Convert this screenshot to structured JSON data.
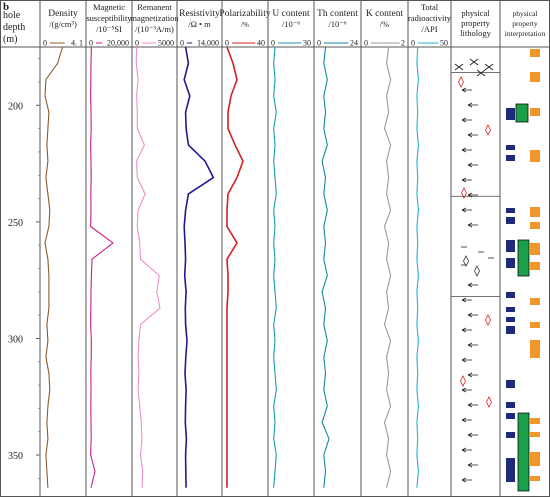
{
  "panel_label": "b",
  "depth": {
    "header": [
      "hole",
      "depth",
      "(m)"
    ],
    "ticks": [
      200,
      250,
      300,
      350
    ],
    "range": [
      175,
      368
    ]
  },
  "tracks": [
    {
      "key": "density",
      "header": [
        "Density",
        "/(g/cm³)"
      ],
      "scale_min": "0",
      "scale_max": "4. 1",
      "min": 0,
      "max": 4.1,
      "color": "#8b5a2b"
    },
    {
      "key": "magsus",
      "header": [
        "Magnetic",
        "susceptibility",
        "/10⁻⁵SI"
      ],
      "scale_min": "0",
      "scale_max": "20,000",
      "min": 0,
      "max": 20000,
      "color": "#cc1f8a"
    },
    {
      "key": "remanent",
      "header": [
        "Remanent",
        "magnetization",
        "/(10⁻³A/m)"
      ],
      "scale_min": "0",
      "scale_max": "5000",
      "min": 0,
      "max": 5000,
      "color": "#f08cc8"
    },
    {
      "key": "resistivity",
      "header": [
        "Resistivity",
        "/Ω • m"
      ],
      "scale_min": "0",
      "scale_max": "14,000",
      "min": 0,
      "max": 14000,
      "color": "#1c1c8c"
    },
    {
      "key": "polarizability",
      "header": [
        "Polarizability",
        "/%"
      ],
      "scale_min": "0",
      "scale_max": "40",
      "min": 0,
      "max": 40,
      "color": "#d42020"
    },
    {
      "key": "u",
      "header": [
        "U content",
        "/10⁻⁶"
      ],
      "scale_min": "0",
      "scale_max": "30",
      "min": 0,
      "max": 30,
      "color": "#1a9bb0"
    },
    {
      "key": "th",
      "header": [
        "Th content",
        "/10⁻⁶"
      ],
      "scale_min": "0",
      "scale_max": "24",
      "min": 0,
      "max": 24,
      "color": "#1686a3"
    },
    {
      "key": "k",
      "header": [
        "K content",
        "/%"
      ],
      "scale_min": "0",
      "scale_max": "2",
      "min": 0,
      "max": 2,
      "color": "#9a9a9a"
    },
    {
      "key": "total",
      "header": [
        "Total",
        "radioactivity",
        "/API"
      ],
      "scale_min": "0",
      "scale_max": "50",
      "min": 0,
      "max": 50,
      "color": "#2ab0d8"
    }
  ],
  "lithology": {
    "header": [
      "physical",
      "property",
      "lithology"
    ]
  },
  "interpretation": {
    "header": [
      "physical",
      "property",
      "interpretation"
    ],
    "colors": {
      "navy": "#1f2a78",
      "green": "#1aa04a",
      "orange": "#f0962a"
    }
  },
  "chart_data": {
    "type": "well-log",
    "depth_unit": "m",
    "depth": [
      175,
      182,
      189,
      196,
      203,
      210,
      217,
      224,
      231,
      238,
      245,
      252,
      259,
      266,
      273,
      280,
      287,
      294,
      301,
      308,
      315,
      322,
      329,
      336,
      343,
      350,
      357,
      364
    ],
    "density": [
      2.0,
      1.5,
      0.3,
      0.2,
      0.6,
      0.5,
      0.4,
      0.5,
      0.3,
      0.5,
      0.7,
      0.6,
      0.2,
      0.5,
      0.6,
      0.6,
      0.6,
      0.4,
      0.5,
      0.3,
      0.6,
      0.7,
      0.5,
      0.4,
      0.5,
      0.3,
      0.4,
      0.5
    ],
    "magsus": [
      1200,
      1000,
      900,
      800,
      1000,
      1100,
      800,
      1000,
      1100,
      900,
      1000,
      800,
      12000,
      1500,
      1200,
      1000,
      900,
      800,
      1200,
      1100,
      900,
      1000,
      900,
      1000,
      1100,
      800,
      3000,
      1000
    ],
    "remanent": [
      200,
      150,
      400,
      200,
      300,
      300,
      1200,
      200,
      300,
      1300,
      400,
      300,
      600,
      700,
      3100,
      2800,
      3200,
      700,
      500,
      400,
      500,
      400,
      600,
      800,
      900,
      700,
      1000,
      900
    ],
    "resistivity": [
      2000,
      3000,
      1500,
      3500,
      2000,
      2200,
      3000,
      9000,
      12000,
      3000,
      2000,
      1500,
      1800,
      2000,
      1700,
      2200,
      1900,
      2000,
      2500,
      2100,
      1800,
      2200,
      2000,
      1900,
      2300,
      2000,
      2100,
      2200
    ],
    "polarizability": [
      2,
      8,
      12,
      6,
      3,
      3,
      10,
      18,
      12,
      3,
      2,
      2,
      12,
      2,
      3,
      3,
      2,
      2,
      2,
      2,
      2,
      2,
      2,
      2,
      2,
      2,
      2,
      2
    ],
    "u": [
      3,
      2,
      3,
      2,
      4,
      2,
      3,
      2,
      3,
      4,
      2,
      3,
      2,
      3,
      2,
      3,
      4,
      2,
      3,
      2,
      3,
      4,
      2,
      3,
      2,
      4,
      3,
      2
    ],
    "th": [
      5,
      4,
      6,
      4,
      5,
      4,
      6,
      3,
      5,
      4,
      6,
      4,
      5,
      4,
      6,
      3,
      5,
      4,
      6,
      4,
      5,
      4,
      6,
      3,
      7,
      4,
      5,
      4
    ],
    "k": [
      1.2,
      1.1,
      1.3,
      1.1,
      1.2,
      1.0,
      1.3,
      1.1,
      1.2,
      1.1,
      1.3,
      1.0,
      1.2,
      1.1,
      1.3,
      1.1,
      1.2,
      1.0,
      1.3,
      1.1,
      1.2,
      1.1,
      1.3,
      1.0,
      1.2,
      1.1,
      1.3,
      1.1
    ],
    "total": [
      9,
      8,
      10,
      8,
      9,
      8,
      10,
      8,
      9,
      8,
      10,
      8,
      9,
      8,
      10,
      8,
      9,
      8,
      10,
      8,
      9,
      8,
      10,
      8,
      9,
      8,
      10,
      8
    ]
  }
}
